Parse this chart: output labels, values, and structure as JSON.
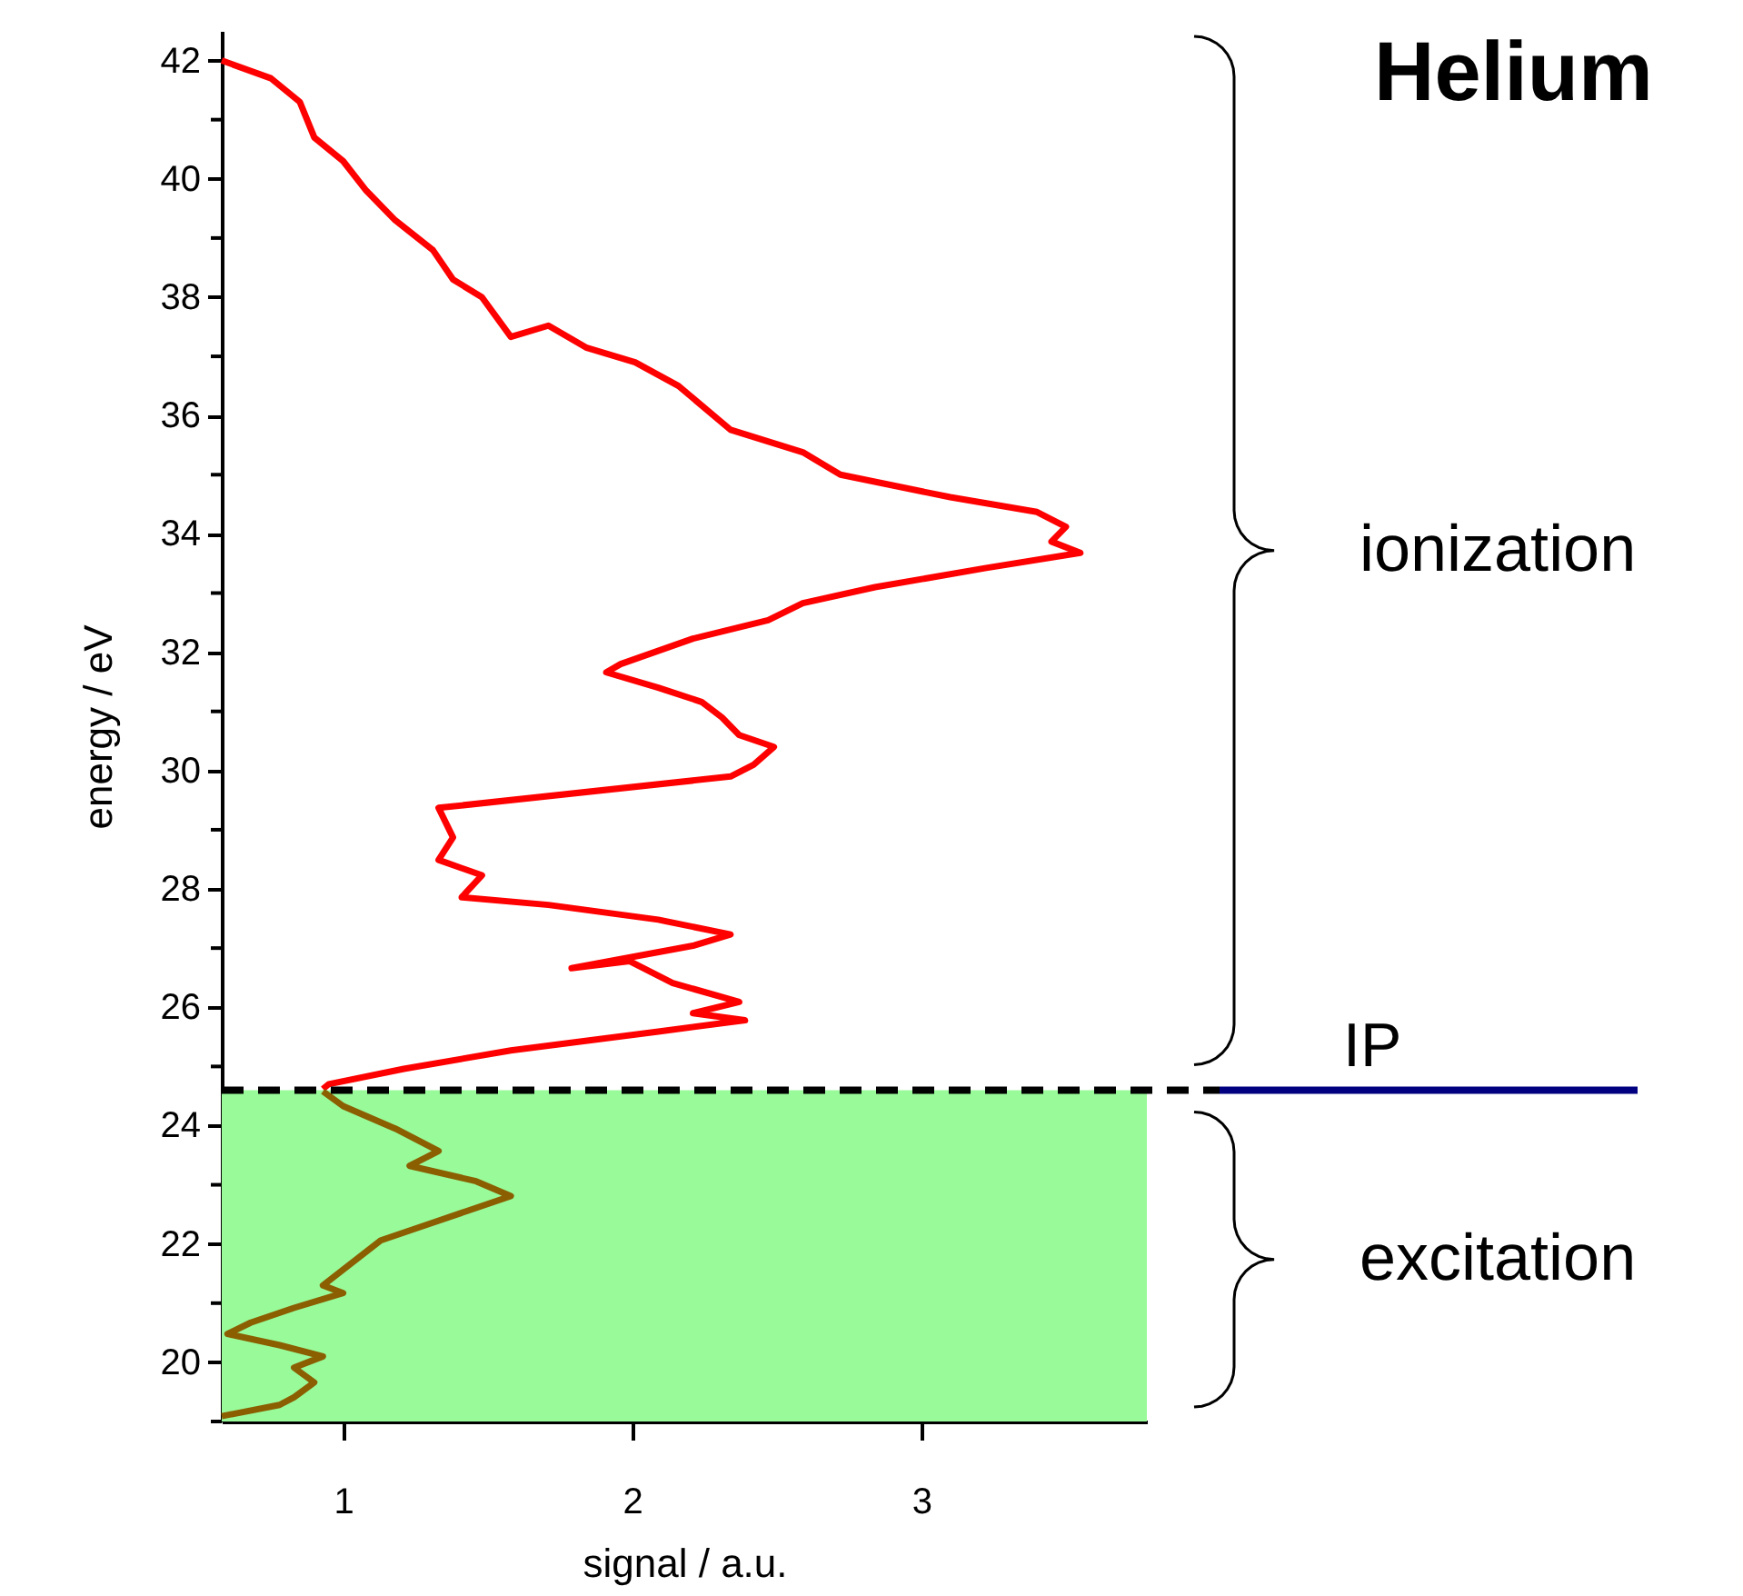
{
  "chart_data": {
    "type": "line",
    "title": "Helium",
    "xlabel": "signal / a.u.",
    "ylabel": "energy / eV",
    "xlim": [
      0.58,
      3.78
    ],
    "xticks": [
      1,
      2,
      3
    ],
    "ylim": [
      19,
      42.5
    ],
    "yticks": [
      {
        "value": 19,
        "label": null
      },
      20,
      {
        "value": 21,
        "label": null
      },
      22,
      {
        "value": 23,
        "label": null
      },
      24,
      {
        "value": 25,
        "label": null
      },
      26,
      {
        "value": 27,
        "label": null
      },
      28,
      {
        "value": 29,
        "label": null
      },
      30,
      {
        "value": 31,
        "label": null
      },
      32,
      {
        "value": 33,
        "label": null
      },
      34,
      {
        "value": 35,
        "label": null
      },
      36,
      {
        "value": 37,
        "label": null
      },
      38,
      {
        "value": 39,
        "label": null
      },
      40,
      {
        "value": 41,
        "label": null
      },
      42
    ],
    "grid": false,
    "marker": "none",
    "line_style": "solid",
    "series": [
      {
        "color": "#ff0000",
        "x": [
          0.93,
          0.95,
          1.21,
          1.58,
          2.09,
          2.39,
          2.21,
          2.37,
          2.14,
          1.99,
          1.79,
          2.21,
          2.34,
          2.09,
          1.71,
          1.41,
          1.48,
          1.33,
          1.38,
          1.33,
          2.34,
          2.42,
          2.49,
          2.37,
          2.31,
          2.24,
          2.09,
          1.91,
          1.96,
          2.21,
          2.47,
          2.59,
          2.84,
          3.22,
          3.55,
          3.45,
          3.5,
          3.4,
          3.1,
          2.72,
          2.59,
          2.34,
          2.16,
          2.01,
          1.84,
          1.71,
          1.58,
          1.48,
          1.38,
          1.31,
          1.18,
          1.08,
          1.0,
          0.9,
          0.85,
          0.75,
          0.58
        ],
        "values": [
          24.62,
          24.7,
          24.96,
          25.27,
          25.59,
          25.78,
          25.9,
          26.09,
          26.41,
          26.78,
          26.66,
          27.04,
          27.23,
          27.48,
          27.73,
          27.86,
          28.23,
          28.49,
          28.87,
          29.37,
          29.9,
          30.1,
          30.4,
          30.6,
          30.9,
          31.16,
          31.4,
          31.66,
          31.8,
          32.23,
          32.54,
          32.83,
          33.1,
          33.42,
          33.68,
          33.87,
          34.12,
          34.37,
          34.62,
          35.0,
          35.38,
          35.76,
          36.5,
          36.9,
          37.15,
          37.52,
          37.33,
          38.0,
          38.3,
          38.8,
          39.3,
          39.8,
          40.3,
          40.7,
          41.3,
          41.7,
          42.0
        ]
      },
      {
        "color": "#8b5e00",
        "x": [
          0.93,
          1.0,
          1.18,
          1.33,
          1.23,
          1.46,
          1.58,
          1.43,
          1.28,
          1.13,
          1.03,
          0.93,
          1.0,
          0.83,
          0.68,
          0.6,
          0.78,
          0.93,
          0.83,
          0.9,
          0.83,
          0.78,
          0.58
        ],
        "values": [
          24.58,
          24.33,
          23.95,
          23.57,
          23.32,
          23.06,
          22.81,
          22.56,
          22.31,
          22.06,
          21.68,
          21.3,
          21.17,
          20.92,
          20.67,
          20.48,
          20.29,
          20.1,
          19.91,
          19.66,
          19.41,
          19.28,
          19.09
        ]
      }
    ],
    "ref_lines": [
      {
        "axis": "y",
        "value": 24.6,
        "label": "IP",
        "color": "#000000",
        "line_style": "dashed"
      }
    ],
    "bands": [
      {
        "axis": "y",
        "from": 19,
        "to": 24.6,
        "color": "#99fa99"
      }
    ],
    "annotations": [
      "ionization",
      "excitation"
    ]
  }
}
